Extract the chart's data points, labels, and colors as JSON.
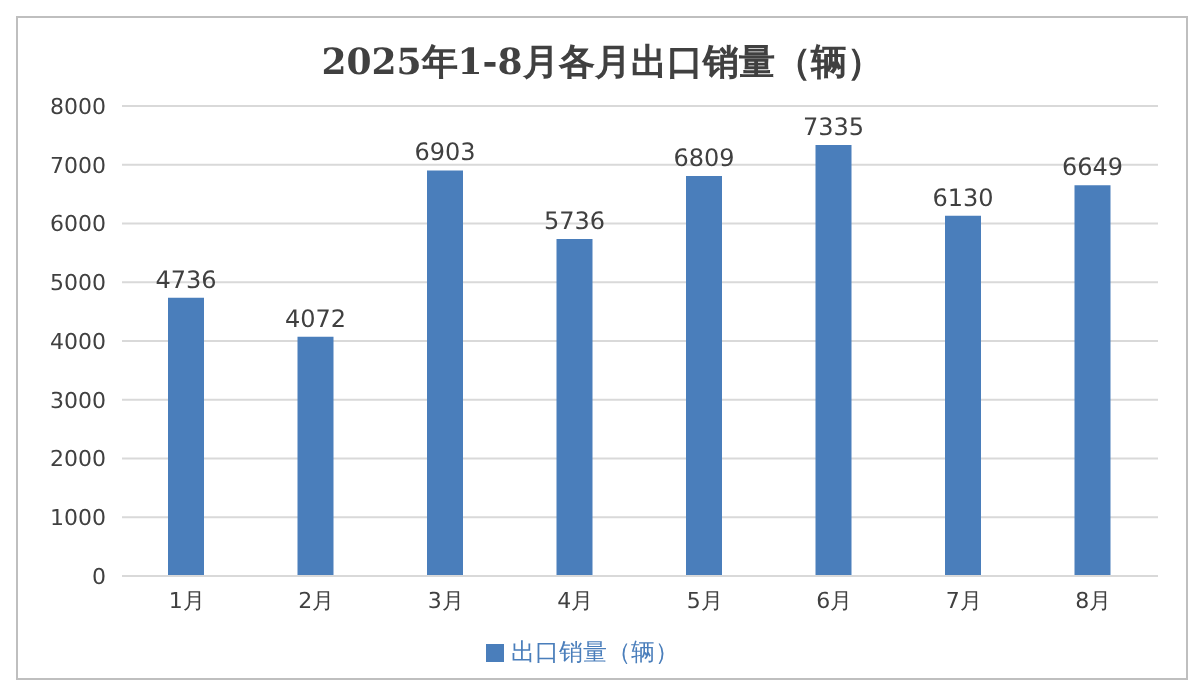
{
  "chart_data": {
    "type": "bar",
    "title": "2025年1-8月各月出口销量（辆）",
    "categories": [
      "1月",
      "2月",
      "3月",
      "4月",
      "5月",
      "6月",
      "7月",
      "8月"
    ],
    "series": [
      {
        "name": "出口销量（辆）",
        "color": "#4a7ebb",
        "values": [
          4736,
          4072,
          6903,
          5736,
          6809,
          7335,
          6130,
          6649
        ]
      }
    ],
    "ylim": [
      0,
      8000
    ],
    "yticks": [
      0,
      1000,
      2000,
      3000,
      4000,
      5000,
      6000,
      7000,
      8000
    ],
    "grid": "y",
    "legend": "bottom",
    "data_labels": true
  }
}
